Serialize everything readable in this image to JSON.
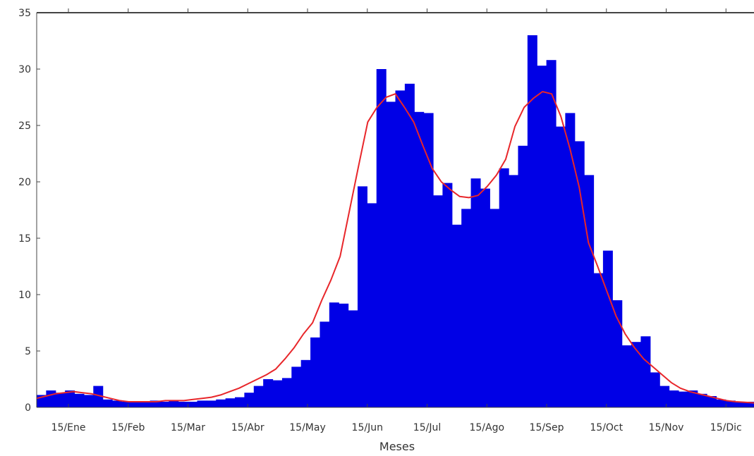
{
  "chart_data": {
    "type": "bar",
    "title": "",
    "xlabel": "Meses",
    "ylabel": "",
    "ylim": [
      0,
      35
    ],
    "y_ticks": [
      0,
      5,
      10,
      15,
      20,
      25,
      30,
      35
    ],
    "x_tick_labels": [
      "15/Ene",
      "15/Feb",
      "15/Mar",
      "15/Abr",
      "15/May",
      "15/Jun",
      "15/Jul",
      "15/Ago",
      "15/Sep",
      "15/Oct",
      "15/Nov",
      "15/Dic"
    ],
    "grid": false,
    "legend": "none",
    "colors": {
      "bars": "#0000e6",
      "curve": "#e8262a",
      "axis": "#333333"
    },
    "series": [
      {
        "type": "bar",
        "values": [
          1.1,
          1.5,
          1.3,
          1.5,
          1.2,
          1.1,
          1.9,
          0.7,
          0.6,
          0.5,
          0.5,
          0.5,
          0.6,
          0.5,
          0.6,
          0.5,
          0.5,
          0.6,
          0.6,
          0.7,
          0.8,
          0.9,
          1.3,
          1.9,
          2.5,
          2.4,
          2.6,
          3.6,
          4.2,
          6.2,
          7.6,
          9.3,
          9.2,
          8.6,
          19.6,
          18.1,
          30.0,
          27.1,
          28.1,
          28.7,
          26.2,
          26.1,
          18.8,
          19.9,
          16.2,
          17.6,
          20.3,
          19.4,
          17.6,
          21.2,
          20.6,
          23.2,
          33.0,
          30.3,
          30.8,
          24.9,
          26.1,
          23.6,
          20.6,
          11.9,
          13.9,
          9.5,
          5.5,
          5.8,
          6.3,
          3.1,
          1.9,
          1.5,
          1.4,
          1.5,
          1.2,
          1.0,
          0.7,
          0.6,
          0.5,
          0.5
        ]
      },
      {
        "type": "line",
        "values": [
          0.8,
          1.0,
          1.2,
          1.3,
          1.4,
          1.3,
          1.2,
          1.0,
          0.8,
          0.6,
          0.5,
          0.5,
          0.5,
          0.5,
          0.6,
          0.6,
          0.6,
          0.7,
          0.8,
          0.9,
          1.1,
          1.4,
          1.7,
          2.1,
          2.5,
          2.9,
          3.4,
          4.3,
          5.3,
          6.5,
          7.5,
          9.5,
          11.3,
          13.4,
          17.4,
          21.4,
          25.3,
          26.6,
          27.5,
          27.8,
          26.6,
          25.3,
          23.2,
          21.2,
          20.0,
          19.3,
          18.7,
          18.6,
          18.8,
          19.6,
          20.6,
          22.0,
          24.9,
          26.6,
          27.4,
          28.0,
          27.8,
          25.8,
          22.9,
          19.5,
          14.6,
          12.5,
          10.3,
          8.1,
          6.5,
          5.3,
          4.3,
          3.6,
          2.9,
          2.2,
          1.7,
          1.4,
          1.2,
          1.0,
          0.8,
          0.6,
          0.5,
          0.45,
          0.4
        ]
      }
    ]
  }
}
